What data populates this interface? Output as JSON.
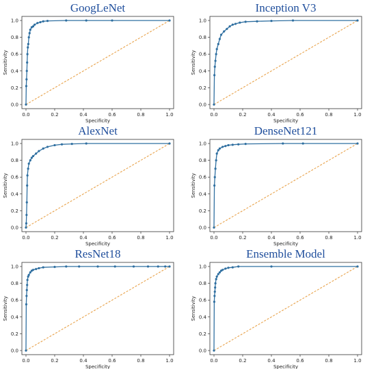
{
  "colors": {
    "roc": "#2f6fa0",
    "diag": "#e8a24a",
    "title": "#1f4e9c"
  },
  "chart_data": [
    {
      "type": "line",
      "title": "GoogLeNet",
      "xlabel": "Specificity",
      "ylabel": "Sensitivity",
      "xlim": [
        0,
        1
      ],
      "ylim": [
        0,
        1
      ],
      "xticks": [
        "0.0",
        "0.2",
        "0.4",
        "0.6",
        "0.8",
        "1.0"
      ],
      "yticks": [
        "0.0",
        "0.2",
        "0.4",
        "0.6",
        "0.8",
        "1.0"
      ],
      "series": [
        {
          "x": [
            0,
            0.002,
            0.004,
            0.006,
            0.008,
            0.01,
            0.013,
            0.016,
            0.02,
            0.025,
            0.03,
            0.04,
            0.05,
            0.06,
            0.08,
            0.1,
            0.12,
            0.15,
            0.28,
            0.42,
            0.6,
            1.0
          ],
          "y": [
            0,
            0.22,
            0.3,
            0.4,
            0.5,
            0.6,
            0.68,
            0.72,
            0.8,
            0.85,
            0.89,
            0.92,
            0.93,
            0.95,
            0.97,
            0.98,
            0.99,
            0.995,
            1.0,
            1.0,
            1.0,
            1.0
          ]
        },
        {
          "x": [
            0,
            1
          ],
          "y": [
            0,
            1
          ]
        }
      ]
    },
    {
      "type": "line",
      "title": "Inception V3",
      "xlabel": "Specificity",
      "ylabel": "Sensitivity",
      "xlim": [
        0,
        1
      ],
      "ylim": [
        0,
        1
      ],
      "xticks": [
        "0.0",
        "0.2",
        "0.4",
        "0.6",
        "0.8",
        "1.0"
      ],
      "yticks": [
        "0.0",
        "0.2",
        "0.4",
        "0.6",
        "0.8",
        "1.0"
      ],
      "series": [
        {
          "x": [
            0,
            0.003,
            0.006,
            0.01,
            0.015,
            0.02,
            0.03,
            0.04,
            0.05,
            0.07,
            0.09,
            0.11,
            0.13,
            0.15,
            0.18,
            0.22,
            0.3,
            0.4,
            0.55,
            1.0
          ],
          "y": [
            0,
            0.35,
            0.45,
            0.52,
            0.6,
            0.66,
            0.72,
            0.78,
            0.83,
            0.87,
            0.9,
            0.93,
            0.95,
            0.96,
            0.975,
            0.985,
            0.99,
            0.995,
            1.0,
            1.0
          ]
        },
        {
          "x": [
            0,
            1
          ],
          "y": [
            0,
            1
          ]
        }
      ]
    },
    {
      "type": "line",
      "title": "AlexNet",
      "xlabel": "Specificity",
      "ylabel": "Sensitivity",
      "xlim": [
        0,
        1
      ],
      "ylim": [
        0,
        1
      ],
      "xticks": [
        "0.0",
        "0.2",
        "0.4",
        "0.6",
        "0.8",
        "1.0"
      ],
      "yticks": [
        "0.0",
        "0.2",
        "0.4",
        "0.6",
        "0.8",
        "1.0"
      ],
      "series": [
        {
          "x": [
            0,
            0.002,
            0.004,
            0.006,
            0.008,
            0.01,
            0.015,
            0.02,
            0.03,
            0.04,
            0.05,
            0.07,
            0.09,
            0.12,
            0.15,
            0.2,
            0.25,
            0.32,
            0.42,
            1.0
          ],
          "y": [
            0,
            0.05,
            0.15,
            0.3,
            0.5,
            0.62,
            0.7,
            0.76,
            0.8,
            0.83,
            0.85,
            0.88,
            0.91,
            0.94,
            0.96,
            0.98,
            0.99,
            0.995,
            1.0,
            1.0
          ]
        },
        {
          "x": [
            0,
            1
          ],
          "y": [
            0,
            1
          ]
        }
      ]
    },
    {
      "type": "line",
      "title": "DenseNet121",
      "xlabel": "Specificity",
      "ylabel": "Sensitivity",
      "xlim": [
        0,
        1
      ],
      "ylim": [
        0,
        1
      ],
      "xticks": [
        "0.0",
        "0.2",
        "0.4",
        "0.6",
        "0.8",
        "1.0"
      ],
      "yticks": [
        "0.0",
        "0.2",
        "0.4",
        "0.6",
        "0.8",
        "1.0"
      ],
      "series": [
        {
          "x": [
            0,
            0.003,
            0.006,
            0.01,
            0.015,
            0.02,
            0.03,
            0.04,
            0.06,
            0.08,
            0.1,
            0.13,
            0.17,
            0.22,
            0.48,
            0.62,
            1.0
          ],
          "y": [
            0,
            0.5,
            0.6,
            0.7,
            0.8,
            0.88,
            0.92,
            0.94,
            0.96,
            0.97,
            0.98,
            0.985,
            0.99,
            0.995,
            1.0,
            1.0,
            1.0
          ]
        },
        {
          "x": [
            0,
            1
          ],
          "y": [
            0,
            1
          ]
        }
      ]
    },
    {
      "type": "line",
      "title": "ResNet18",
      "xlabel": "Specificity",
      "ylabel": "Sensitivity",
      "xlim": [
        0,
        1
      ],
      "ylim": [
        0,
        1
      ],
      "xticks": [
        "0.0",
        "0.2",
        "0.4",
        "0.6",
        "0.8",
        "1.0"
      ],
      "yticks": [
        "0.0",
        "0.2",
        "0.4",
        "0.6",
        "0.8",
        "1.0"
      ],
      "series": [
        {
          "x": [
            0,
            0.002,
            0.004,
            0.006,
            0.008,
            0.01,
            0.015,
            0.02,
            0.03,
            0.04,
            0.05,
            0.07,
            0.09,
            0.12,
            0.2,
            0.28,
            0.37,
            0.5,
            0.62,
            0.75,
            0.85,
            0.92,
            0.97,
            1.0
          ],
          "y": [
            0,
            0.55,
            0.65,
            0.72,
            0.78,
            0.84,
            0.88,
            0.9,
            0.93,
            0.95,
            0.96,
            0.97,
            0.98,
            0.99,
            0.995,
            1.0,
            1.0,
            1.0,
            1.0,
            1.0,
            1.0,
            1.0,
            1.0,
            1.0
          ]
        },
        {
          "x": [
            0,
            1
          ],
          "y": [
            0,
            1
          ]
        }
      ]
    },
    {
      "type": "line",
      "title": "Ensemble Model",
      "xlabel": "Specificity",
      "ylabel": "Sensitivity",
      "xlim": [
        0,
        1
      ],
      "ylim": [
        0,
        1
      ],
      "xticks": [
        "0.0",
        "0.2",
        "0.4",
        "0.6",
        "0.8",
        "1.0"
      ],
      "yticks": [
        "0.0",
        "0.2",
        "0.4",
        "0.6",
        "0.8",
        "1.0"
      ],
      "series": [
        {
          "x": [
            0,
            0.002,
            0.004,
            0.006,
            0.008,
            0.01,
            0.015,
            0.02,
            0.03,
            0.04,
            0.05,
            0.06,
            0.08,
            0.1,
            0.13,
            0.17,
            0.4,
            1.0
          ],
          "y": [
            0,
            0.58,
            0.65,
            0.7,
            0.75,
            0.8,
            0.85,
            0.88,
            0.91,
            0.93,
            0.95,
            0.96,
            0.975,
            0.985,
            0.99,
            1.0,
            1.0,
            1.0
          ]
        },
        {
          "x": [
            0,
            1
          ],
          "y": [
            0,
            1
          ]
        }
      ]
    }
  ]
}
